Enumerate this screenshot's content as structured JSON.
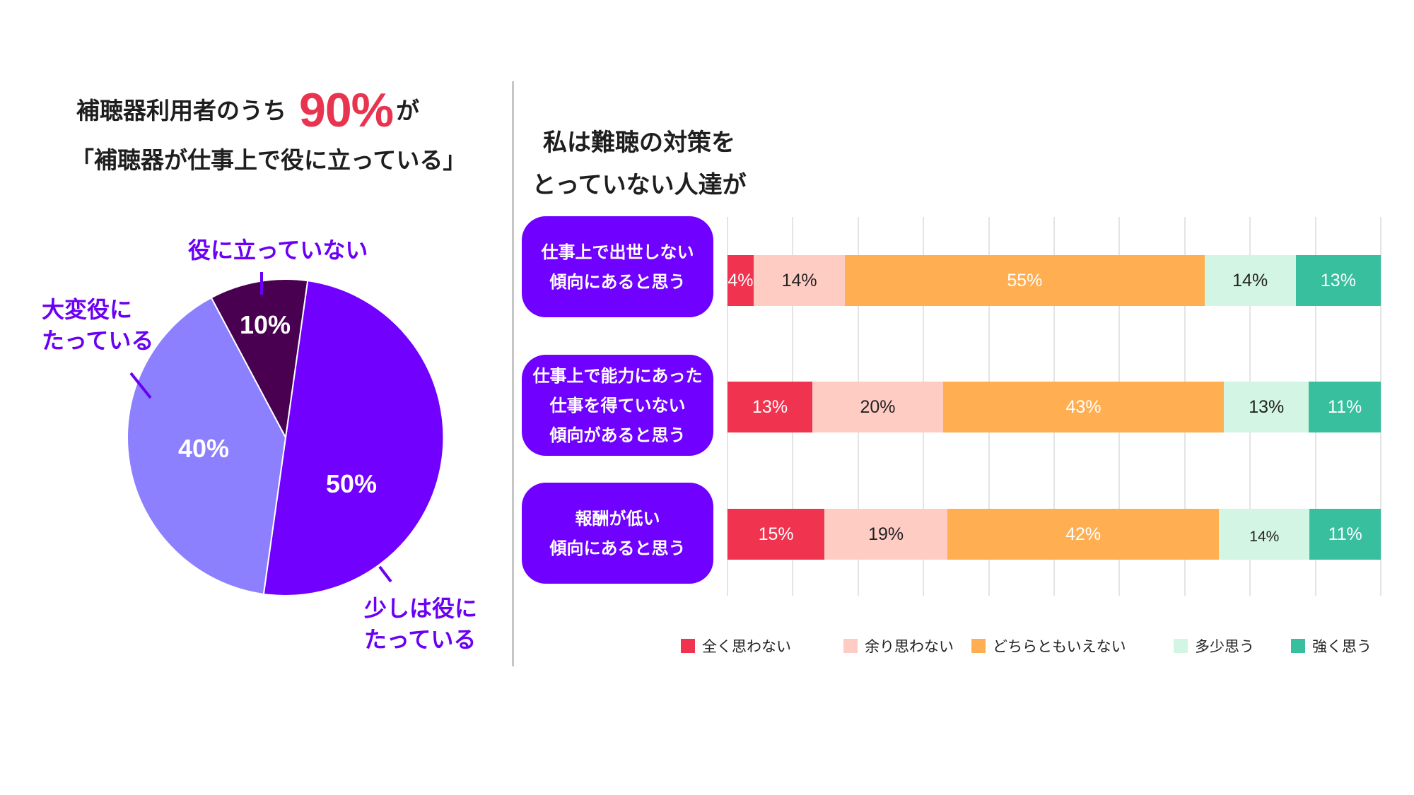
{
  "left_panel": {
    "headline": {
      "prefix": "補聴器利用者のうち",
      "highlight": "90%",
      "suffix": "が",
      "line2": "「補聴器が仕事上で役に立っている」"
    }
  },
  "right_panel": {
    "title_line1": "私は難聴の対策を",
    "title_line2": "とっていない人達が"
  },
  "chart_data": [
    {
      "type": "pie",
      "slices": [
        {
          "label_lines": [
            "少しは役に",
            "たっている"
          ],
          "value": 50,
          "color": "#7100FF"
        },
        {
          "label_lines": [
            "大変役に",
            "たっている"
          ],
          "value": 40,
          "color": "#8C80FE"
        },
        {
          "label_lines": [
            "役に立っていない"
          ],
          "value": 10,
          "color": "#4A0050"
        }
      ],
      "unit": "%"
    },
    {
      "type": "bar",
      "orientation": "horizontal",
      "stacked": true,
      "normalized": true,
      "categories": [
        {
          "lines": [
            "仕事上で出世しない",
            "傾向にあると思う"
          ]
        },
        {
          "lines": [
            "仕事上で能力にあった",
            "仕事を得ていない",
            "傾向があると思う"
          ]
        },
        {
          "lines": [
            "報酬が低い",
            "傾向にあると思う"
          ]
        }
      ],
      "series": [
        {
          "name": "全く思わない",
          "color": "#F0344F",
          "label_color": "#ffffff",
          "values": [
            4,
            13,
            15
          ]
        },
        {
          "name": "余り思わない",
          "color": "#FFCCC4",
          "label_color": "#222222",
          "values": [
            14,
            20,
            19
          ]
        },
        {
          "name": "どちらともいえない",
          "color": "#FFAF52",
          "label_color": "#ffffff",
          "values": [
            55,
            43,
            42
          ]
        },
        {
          "name": "多少思う",
          "color": "#D3F5E3",
          "label_color": "#222222",
          "values": [
            14,
            13,
            14
          ]
        },
        {
          "name": "強く思う",
          "color": "#38BF9E",
          "label_color": "#ffffff",
          "values": [
            13,
            11,
            11
          ]
        }
      ],
      "unit": "%",
      "xlim": [
        0,
        100
      ],
      "x_grid_step": 10,
      "grid": true,
      "legend": "bottom"
    }
  ]
}
